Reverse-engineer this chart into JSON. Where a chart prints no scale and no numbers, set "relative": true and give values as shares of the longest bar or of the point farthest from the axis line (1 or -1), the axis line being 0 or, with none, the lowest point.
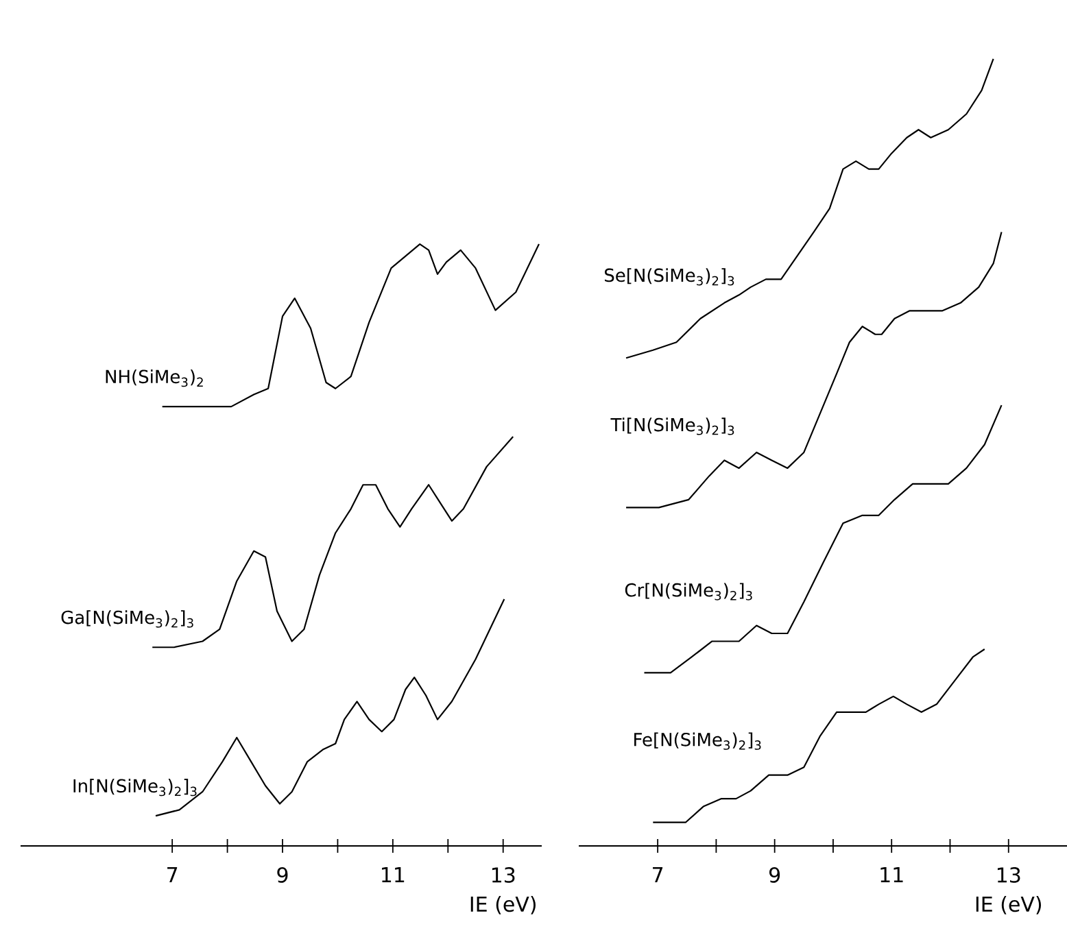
{
  "chart_data": [
    {
      "type": "line",
      "relative": true,
      "xlabel": "IE (eV)",
      "xlim": [
        4.25,
        13.7
      ],
      "xticks": [
        7,
        {
          "value": 8,
          "label": null
        },
        9,
        {
          "value": 10,
          "label": null
        },
        11,
        {
          "value": 12,
          "label": null
        },
        13
      ],
      "series": [
        {
          "name": "NH(SiMe$_{3}$)$_{2}$",
          "color": "#000000",
          "x": [
            6.82,
            7.03,
            7.55,
            8.07,
            8.48,
            8.74,
            9.0,
            9.22,
            9.51,
            9.79,
            9.96,
            10.24,
            10.57,
            10.97,
            11.23,
            11.49,
            11.65,
            11.81,
            11.97,
            12.23,
            12.5,
            12.86,
            13.23,
            13.65
          ],
          "values": [
            0.73,
            0.73,
            0.73,
            0.73,
            0.75,
            0.76,
            0.88,
            0.91,
            0.86,
            0.77,
            0.76,
            0.78,
            0.87,
            0.96,
            0.98,
            1.0,
            0.99,
            0.95,
            0.97,
            0.99,
            0.96,
            0.89,
            0.92,
            1.0
          ]
        },
        {
          "name": "Ga[N(SiMe$_{3}$)$_{2}$]$_{3}$",
          "color": "#000000",
          "x": [
            6.64,
            7.03,
            7.55,
            7.86,
            8.17,
            8.48,
            8.69,
            8.9,
            9.17,
            9.39,
            9.67,
            9.96,
            10.24,
            10.46,
            10.69,
            10.91,
            11.13,
            11.34,
            11.65,
            11.86,
            12.07,
            12.28,
            12.7,
            13.18
          ],
          "values": [
            0.33,
            0.33,
            0.34,
            0.36,
            0.44,
            0.49,
            0.48,
            0.39,
            0.34,
            0.36,
            0.45,
            0.52,
            0.56,
            0.6,
            0.6,
            0.56,
            0.53,
            0.56,
            0.6,
            0.57,
            0.54,
            0.56,
            0.63,
            0.68
          ]
        },
        {
          "name": "In[N(SiMe$_{3}$)$_{2}$]$_{3}$",
          "color": "#000000",
          "x": [
            6.7,
            7.13,
            7.55,
            7.91,
            8.17,
            8.43,
            8.69,
            8.95,
            9.17,
            9.45,
            9.73,
            9.96,
            10.12,
            10.35,
            10.57,
            10.8,
            11.02,
            11.23,
            11.39,
            11.6,
            11.81,
            12.07,
            12.5,
            13.02
          ],
          "values": [
            0.05,
            0.06,
            0.09,
            0.14,
            0.18,
            0.14,
            0.1,
            0.07,
            0.09,
            0.14,
            0.16,
            0.17,
            0.21,
            0.24,
            0.21,
            0.19,
            0.21,
            0.26,
            0.28,
            0.25,
            0.21,
            0.24,
            0.31,
            0.41
          ]
        }
      ]
    },
    {
      "type": "line",
      "relative": true,
      "xlabel": "IE (eV)",
      "xlim": [
        5.65,
        14.0
      ],
      "xticks": [
        7,
        {
          "value": 8,
          "label": null
        },
        9,
        {
          "value": 10,
          "label": null
        },
        11,
        {
          "value": 12,
          "label": null
        },
        13
      ],
      "series": [
        {
          "name": "Se[N(SiMe$_{3}$)$_{2}$]$_{3}$",
          "color": "#000000",
          "x": [
            6.46,
            6.92,
            7.32,
            7.73,
            8.14,
            8.39,
            8.59,
            8.85,
            9.11,
            9.39,
            9.67,
            9.94,
            10.17,
            10.39,
            10.61,
            10.78,
            11.0,
            11.26,
            11.46,
            11.67,
            11.97,
            12.28,
            12.54,
            12.74
          ],
          "values": [
            0.62,
            0.63,
            0.64,
            0.67,
            0.69,
            0.7,
            0.71,
            0.72,
            0.72,
            0.75,
            0.78,
            0.81,
            0.86,
            0.87,
            0.86,
            0.86,
            0.88,
            0.9,
            0.91,
            0.9,
            0.91,
            0.93,
            0.96,
            1.0
          ]
        },
        {
          "name": "Ti[N(SiMe$_{3}$)$_{2}$]$_{3}$",
          "color": "#000000",
          "x": [
            6.46,
            7.02,
            7.53,
            7.88,
            8.14,
            8.39,
            8.69,
            8.95,
            9.22,
            9.5,
            9.78,
            10.06,
            10.28,
            10.5,
            10.72,
            10.83,
            11.05,
            11.31,
            11.57,
            11.87,
            12.18,
            12.49,
            12.74,
            12.88
          ],
          "values": [
            0.43,
            0.43,
            0.44,
            0.47,
            0.49,
            0.48,
            0.5,
            0.49,
            0.48,
            0.5,
            0.55,
            0.6,
            0.64,
            0.66,
            0.65,
            0.65,
            0.67,
            0.68,
            0.68,
            0.68,
            0.69,
            0.71,
            0.74,
            0.78
          ]
        },
        {
          "name": "Cr[N(SiMe$_{3}$)$_{2}$]$_{3}$",
          "color": "#000000",
          "x": [
            6.77,
            7.22,
            7.58,
            7.93,
            8.14,
            8.39,
            8.69,
            8.95,
            9.22,
            9.5,
            9.83,
            10.17,
            10.5,
            10.78,
            11.05,
            11.36,
            11.67,
            11.97,
            12.28,
            12.59,
            12.88
          ],
          "values": [
            0.22,
            0.22,
            0.24,
            0.26,
            0.26,
            0.26,
            0.28,
            0.27,
            0.27,
            0.31,
            0.36,
            0.41,
            0.42,
            0.42,
            0.44,
            0.46,
            0.46,
            0.46,
            0.48,
            0.51,
            0.56
          ]
        },
        {
          "name": "Fe[N(SiMe$_{3}$)$_{2}$]$_{3}$",
          "color": "#000000",
          "x": [
            6.92,
            7.48,
            7.78,
            8.09,
            8.34,
            8.59,
            8.9,
            9.22,
            9.5,
            9.78,
            10.06,
            10.33,
            10.56,
            10.78,
            11.03,
            11.26,
            11.51,
            11.77,
            12.08,
            12.39,
            12.59
          ],
          "values": [
            0.03,
            0.03,
            0.05,
            0.06,
            0.06,
            0.07,
            0.09,
            0.09,
            0.1,
            0.14,
            0.17,
            0.17,
            0.17,
            0.18,
            0.19,
            0.18,
            0.17,
            0.18,
            0.21,
            0.24,
            0.25
          ]
        }
      ]
    }
  ]
}
